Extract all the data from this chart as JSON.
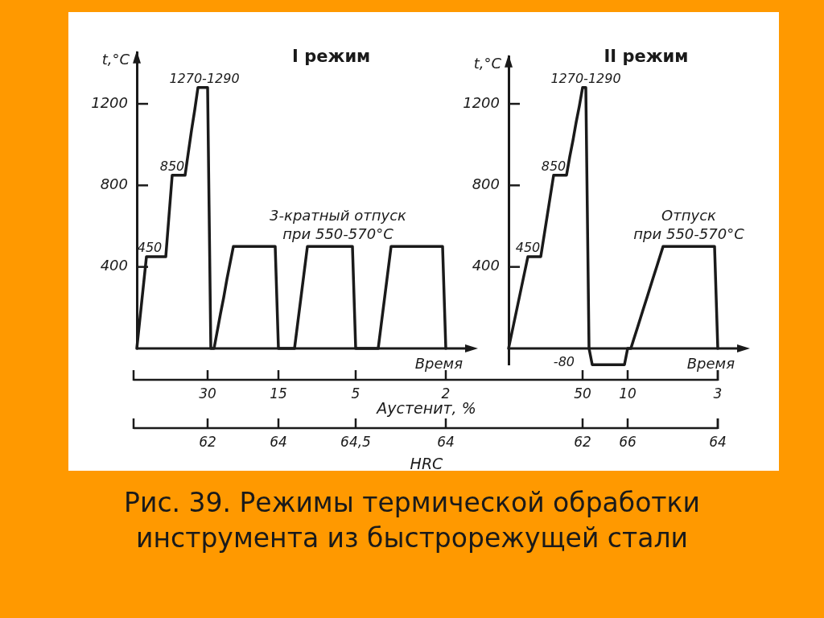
{
  "chart_data": [
    {
      "type": "line",
      "title": "I режим",
      "ylabel": "t,°C",
      "xlabel": "Время",
      "color": "#1a1a1a",
      "ylim": [
        0,
        1450
      ],
      "yticks": [
        400,
        800,
        1200
      ],
      "categories": [
        null,
        null,
        null,
        null,
        null,
        null,
        null,
        null,
        null,
        null,
        null,
        null,
        null,
        null,
        null,
        null,
        null,
        null,
        null,
        null,
        null,
        null,
        "30",
        null,
        null,
        null,
        null,
        null,
        null,
        null,
        null,
        null,
        null,
        null,
        null,
        null,
        null,
        null,
        null,
        null,
        null,
        null,
        null,
        null,
        "15",
        null,
        null,
        null,
        null,
        null,
        null,
        null,
        null,
        null,
        null,
        null,
        null,
        null,
        null,
        null,
        null,
        null,
        null,
        null,
        null,
        null,
        null,
        null,
        "5",
        null,
        null,
        null,
        null,
        null,
        null,
        null,
        null,
        null,
        null,
        null,
        null,
        null,
        null,
        null,
        null,
        null,
        null,
        null,
        null,
        null,
        null,
        null,
        null,
        null,
        null,
        null,
        "2"
      ],
      "values": [
        0,
        150,
        300,
        450,
        450,
        450,
        450,
        450,
        450,
        450,
        650,
        850,
        850,
        850,
        850,
        850,
        960,
        1070,
        1170,
        1280,
        1280,
        1280,
        1280,
        0,
        0,
        85,
        170,
        250,
        340,
        420,
        500,
        500,
        500,
        500,
        500,
        500,
        500,
        500,
        500,
        500,
        500,
        500,
        500,
        500,
        0,
        0,
        0,
        0,
        0,
        0,
        125,
        250,
        375,
        500,
        500,
        500,
        500,
        500,
        500,
        500,
        500,
        500,
        500,
        500,
        500,
        500,
        500,
        500,
        0,
        0,
        0,
        0,
        0,
        0,
        0,
        0,
        125,
        250,
        375,
        500,
        500,
        500,
        500,
        500,
        500,
        500,
        500,
        500,
        500,
        500,
        500,
        500,
        500,
        500,
        500,
        500,
        0
      ],
      "value_labels": [
        null,
        null,
        null,
        null,
        "450",
        null,
        null,
        null,
        null,
        null,
        null,
        "850",
        null,
        null,
        null,
        null,
        null,
        null,
        null,
        null,
        null,
        "1270-1290",
        null,
        null,
        null,
        null,
        null,
        null,
        null,
        null,
        null,
        null,
        null,
        null,
        null,
        null,
        null,
        null,
        null,
        null,
        null,
        null,
        null,
        null,
        null,
        null,
        null,
        null,
        null,
        null,
        null,
        null,
        null,
        null,
        null,
        null,
        null,
        null,
        null,
        null,
        null,
        null,
        null,
        null,
        null,
        null,
        null,
        null,
        null,
        null,
        null,
        null,
        null,
        null,
        null,
        null,
        null,
        null,
        null,
        null,
        null,
        null,
        null,
        null,
        null,
        null,
        null,
        null,
        null,
        null,
        null,
        null,
        null,
        null,
        null,
        null,
        null
      ],
      "annotations": [
        {
          "text": "3-кратный отпуск\nпри 550-570°C",
          "y": 500
        },
        {
          "text": "62",
          "x": "30"
        },
        {
          "text": "64",
          "x": "15"
        },
        {
          "text": "64,5",
          "x": "5"
        },
        {
          "text": "64",
          "x": "2"
        },
        "Аустенит, %",
        "HRC",
        "Рис. 39. Режимы термической обработки инструмента из быстрорежущей стали"
      ]
    },
    {
      "type": "line",
      "title": "II режим",
      "ylabel": "t,°C",
      "xlabel": "Время",
      "color": "#1a1a1a",
      "ylim": [
        -80,
        1430
      ],
      "yticks": [
        400,
        800,
        1200
      ],
      "categories": [
        null,
        null,
        null,
        null,
        null,
        null,
        null,
        null,
        null,
        null,
        null,
        null,
        null,
        null,
        null,
        null,
        null,
        null,
        null,
        null,
        null,
        null,
        null,
        "50",
        null,
        null,
        null,
        null,
        null,
        null,
        null,
        null,
        null,
        null,
        null,
        null,
        null,
        "10",
        null,
        null,
        null,
        null,
        null,
        null,
        null,
        null,
        null,
        null,
        null,
        null,
        null,
        null,
        null,
        null,
        null,
        null,
        null,
        null,
        null,
        null,
        null,
        null,
        null,
        null,
        null,
        "3"
      ],
      "values": [
        0,
        75,
        150,
        225,
        300,
        375,
        450,
        450,
        450,
        450,
        450,
        550,
        650,
        750,
        850,
        850,
        850,
        850,
        850,
        940,
        1020,
        1110,
        1190,
        1280,
        1280,
        0,
        -80,
        -80,
        -80,
        -80,
        -80,
        -80,
        -80,
        -80,
        -80,
        -80,
        -80,
        0,
        0,
        50,
        100,
        150,
        200,
        250,
        300,
        350,
        400,
        450,
        500,
        500,
        500,
        500,
        500,
        500,
        500,
        500,
        500,
        500,
        500,
        500,
        500,
        500,
        500,
        500,
        500,
        0
      ],
      "value_labels": [
        null,
        null,
        null,
        null,
        null,
        null,
        "450",
        null,
        null,
        null,
        null,
        null,
        null,
        null,
        "850",
        null,
        null,
        null,
        null,
        null,
        null,
        null,
        null,
        null,
        "1270-1290",
        null,
        "-80",
        null,
        null,
        null,
        null,
        null,
        null,
        null,
        null,
        null,
        null,
        null,
        null,
        null,
        null,
        null,
        null,
        null,
        null,
        null,
        null,
        null,
        null,
        null,
        null,
        null,
        null,
        null,
        null,
        null,
        null,
        null,
        null,
        null,
        null,
        null,
        null,
        null,
        null,
        null
      ],
      "annotations": [
        {
          "text": "Отпуск\nпри 550-570°C",
          "y": 500
        },
        {
          "text": "62",
          "x": "50"
        },
        {
          "text": "66",
          "x": "10"
        },
        {
          "text": "64",
          "x": "3"
        }
      ]
    }
  ]
}
